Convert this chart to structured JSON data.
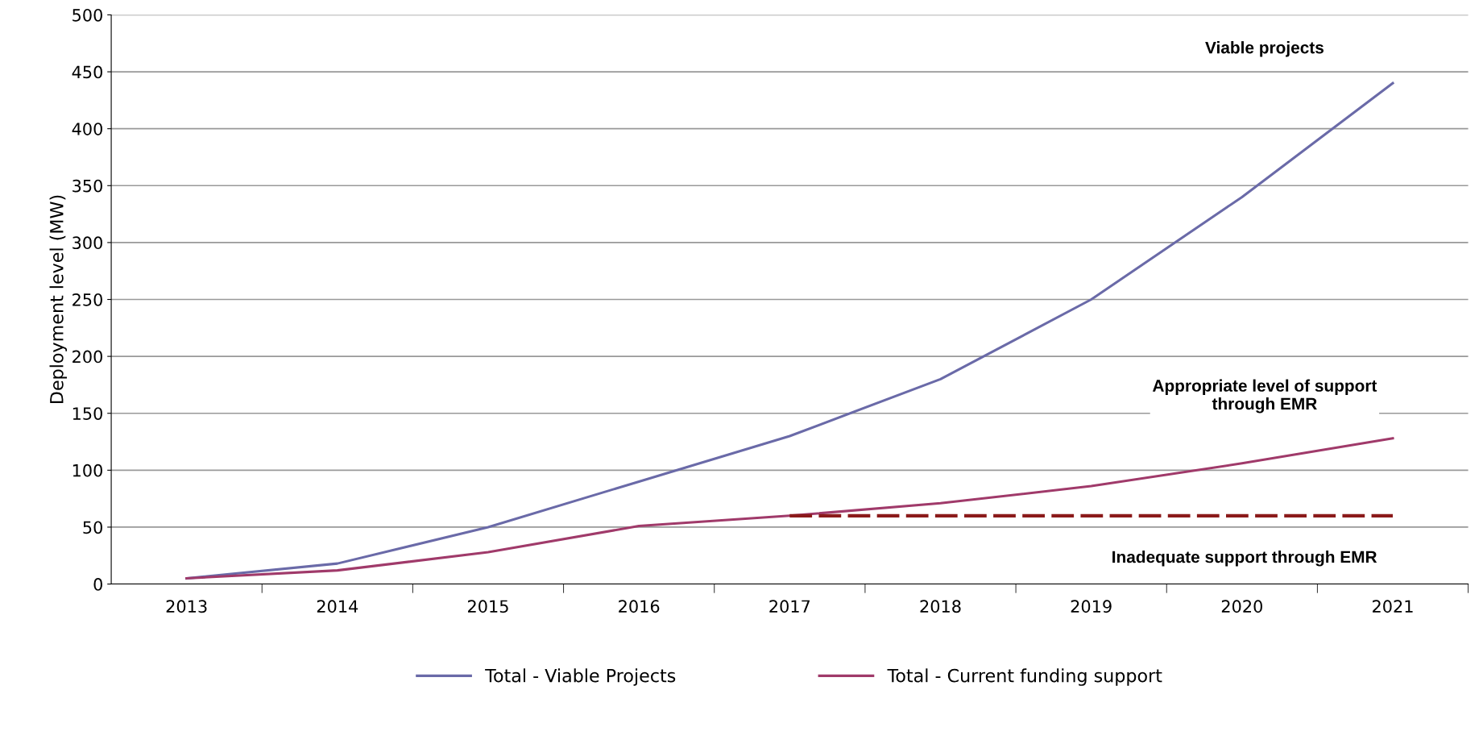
{
  "chart_data": {
    "type": "line",
    "ylabel": "Deployment level (MW)",
    "categories": [
      "2013",
      "2014",
      "2015",
      "2016",
      "2017",
      "2018",
      "2019",
      "2020",
      "2021"
    ],
    "series": [
      {
        "name": "Total - Viable Projects",
        "color": "#6a6aa8",
        "values": [
          5,
          18,
          50,
          90,
          130,
          180,
          250,
          340,
          440
        ]
      },
      {
        "name": "Total - Current funding support",
        "color": "#a03a6a",
        "values": [
          5,
          12,
          28,
          51,
          60,
          71,
          86,
          106,
          128
        ]
      },
      {
        "color": "#8b1a1a",
        "line_style": "dashed",
        "values": [
          null,
          null,
          null,
          null,
          60,
          60,
          60,
          60,
          60
        ]
      }
    ],
    "ylim": [
      0,
      500
    ],
    "yticks": [
      0,
      50,
      100,
      150,
      200,
      250,
      300,
      350,
      400,
      450,
      500
    ],
    "grid": "y",
    "legend": "bottom",
    "annotations": [
      "Viable projects",
      "Appropriate level of support\nthrough EMR",
      "Inadequate support through EMR"
    ]
  }
}
